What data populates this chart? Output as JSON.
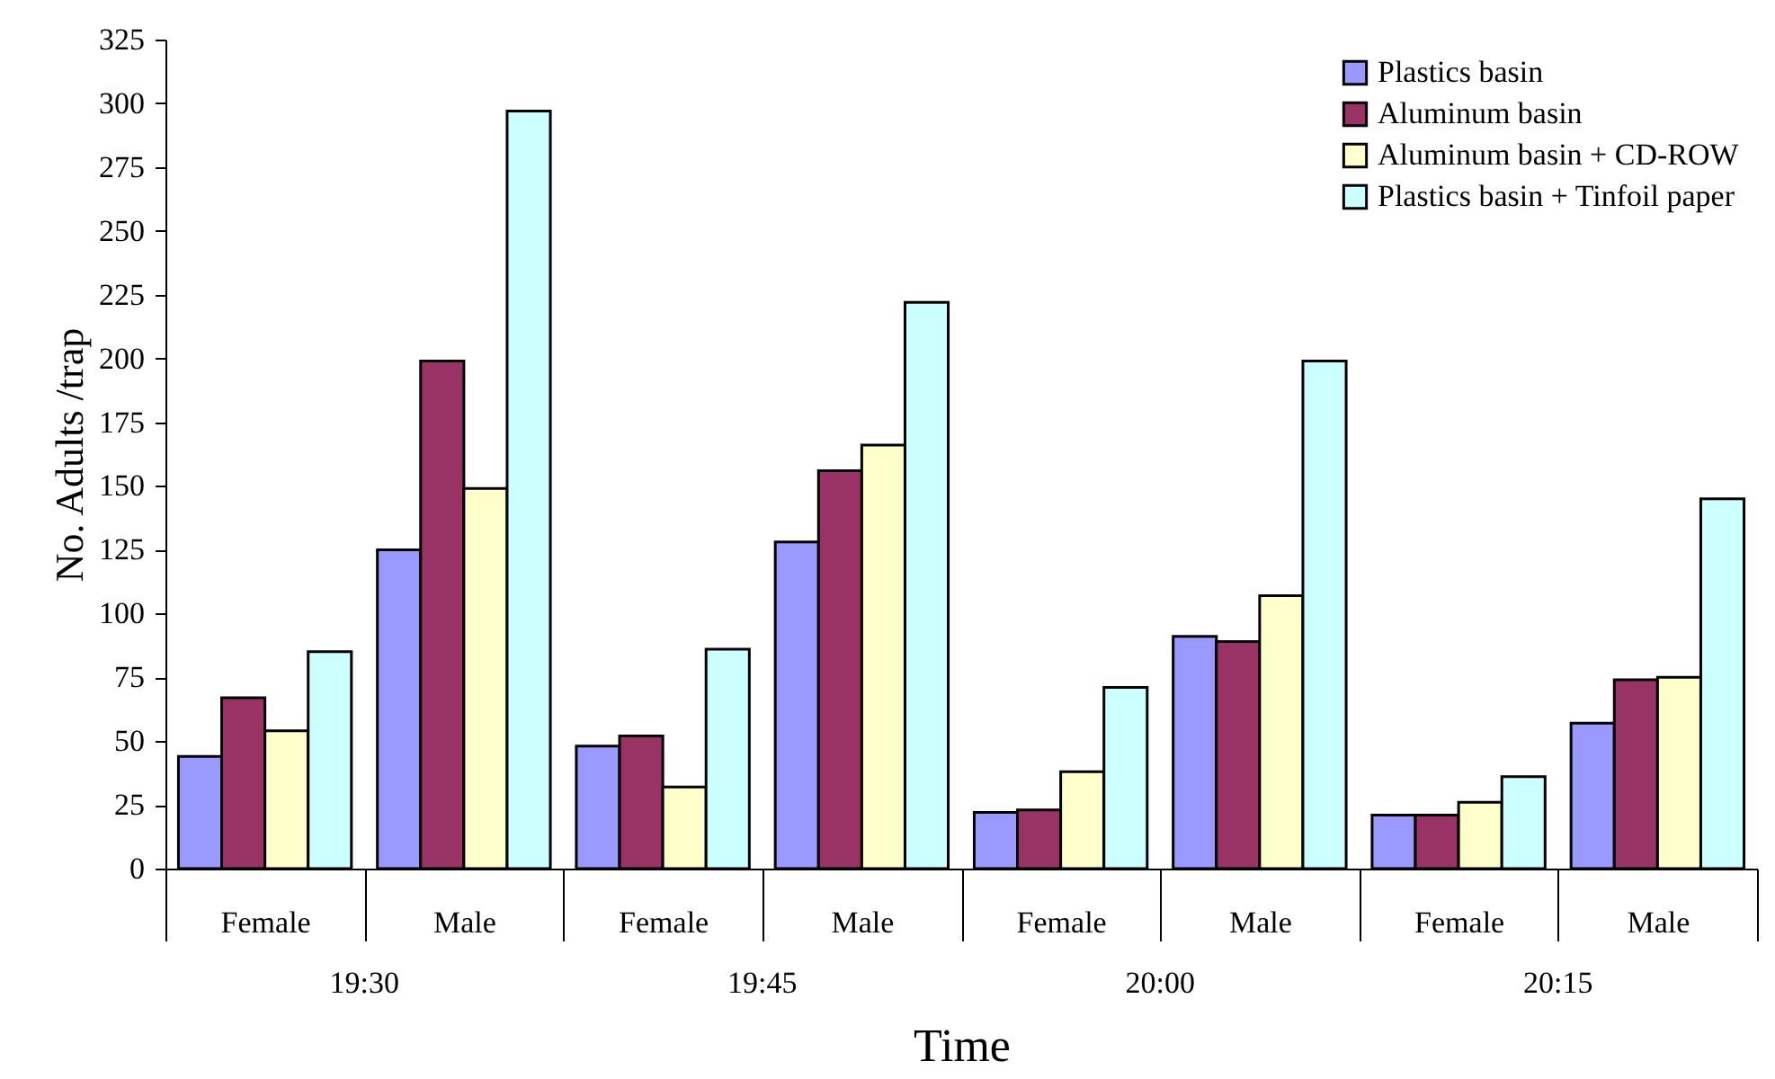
{
  "chart_data": {
    "type": "bar",
    "xlabel": "Time",
    "ylabel": "No. Adults /trap",
    "categories": [
      "Female",
      "Male",
      "Female",
      "Male",
      "Female",
      "Male",
      "Female",
      "Male"
    ],
    "annotations": [
      "19:30",
      "19:45",
      "20:00",
      "20:15"
    ],
    "series": [
      {
        "name": "Plastics basin",
        "color": "#9999ff",
        "values": [
          44,
          125,
          48,
          128,
          22,
          91,
          21,
          57
        ]
      },
      {
        "name": "Aluminum basin",
        "color": "#993366",
        "values": [
          67,
          199,
          52,
          156,
          23,
          89,
          21,
          74
        ]
      },
      {
        "name": "Aluminum basin + CD-ROW",
        "color": "#ffffcc",
        "values": [
          54,
          149,
          32,
          166,
          38,
          107,
          26,
          75
        ]
      },
      {
        "name": "Plastics basin + Tinfoil paper",
        "color": "#ccffff",
        "values": [
          85,
          297,
          86,
          222,
          71,
          199,
          36,
          145
        ]
      }
    ],
    "ylim": [
      0,
      325
    ],
    "yticks": [
      0,
      25,
      50,
      75,
      100,
      125,
      150,
      175,
      200,
      225,
      250,
      275,
      300,
      325
    ],
    "grid": false,
    "legend": "top right"
  }
}
